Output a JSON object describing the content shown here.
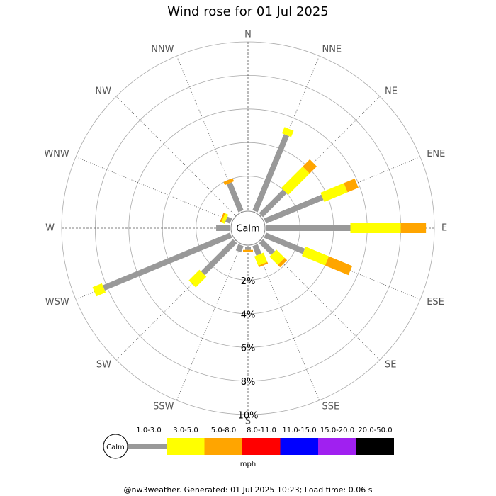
{
  "chart_data": {
    "type": "windrose",
    "title": "Wind rose for 01 Jul 2025",
    "directions": [
      "N",
      "NNE",
      "NE",
      "ENE",
      "E",
      "ESE",
      "SE",
      "SSE",
      "S",
      "SSW",
      "SW",
      "WSW",
      "W",
      "WNW",
      "NW",
      "NNW"
    ],
    "series": [
      {
        "name": "1.0-3.0",
        "color": "#999999",
        "values": [
          0,
          4.9,
          2.0,
          3.7,
          5.0,
          2.5,
          1.0,
          0.6,
          0.2,
          0.4,
          2.7,
          8.2,
          0.8,
          0.3,
          0,
          1.8
        ]
      },
      {
        "name": "3.0-5.0",
        "color": "#ffff00",
        "values": [
          0,
          0.4,
          1.8,
          1.5,
          3.0,
          1.5,
          0.7,
          0.6,
          0,
          0,
          0.9,
          0.6,
          0,
          0.2,
          0,
          0
        ]
      },
      {
        "name": "5.0-8.0",
        "color": "#ffa500",
        "values": [
          0,
          0,
          0.6,
          0.7,
          1.5,
          1.5,
          0.2,
          0.1,
          0.1,
          0,
          0,
          0,
          0,
          0.1,
          0,
          0.2
        ]
      },
      {
        "name": "8.0-11.0",
        "color": "#ff0000",
        "values": [
          0,
          0,
          0,
          0,
          0,
          0,
          0,
          0,
          0,
          0,
          0,
          0,
          0,
          0,
          0,
          0
        ]
      },
      {
        "name": "11.0-15.0",
        "color": "#0000ff",
        "values": [
          0,
          0,
          0,
          0,
          0,
          0,
          0,
          0,
          0,
          0,
          0,
          0,
          0,
          0,
          0,
          0
        ]
      },
      {
        "name": "15.0-20.0",
        "color": "#a020f0",
        "values": [
          0,
          0,
          0,
          0,
          0,
          0,
          0,
          0,
          0,
          0,
          0,
          0,
          0,
          0,
          0,
          0
        ]
      },
      {
        "name": "20.0-50.0",
        "color": "#000000",
        "values": [
          0,
          0,
          0,
          0,
          0,
          0,
          0,
          0,
          0,
          0,
          0,
          0,
          0,
          0,
          0,
          0
        ]
      }
    ],
    "rlim": [
      0,
      10
    ],
    "rticks": [
      {
        "value": 2,
        "label": "2%"
      },
      {
        "value": 4,
        "label": "4%"
      },
      {
        "value": 6,
        "label": "6%"
      },
      {
        "value": 8,
        "label": "8%"
      },
      {
        "value": 10,
        "label": "10%"
      }
    ],
    "calm_label": "Calm",
    "legend_calm": "Calm",
    "unit": "mph",
    "footer": "@nw3weather.  Generated: 01 Jul 2025 10:23; Load time: 0.06 s"
  }
}
